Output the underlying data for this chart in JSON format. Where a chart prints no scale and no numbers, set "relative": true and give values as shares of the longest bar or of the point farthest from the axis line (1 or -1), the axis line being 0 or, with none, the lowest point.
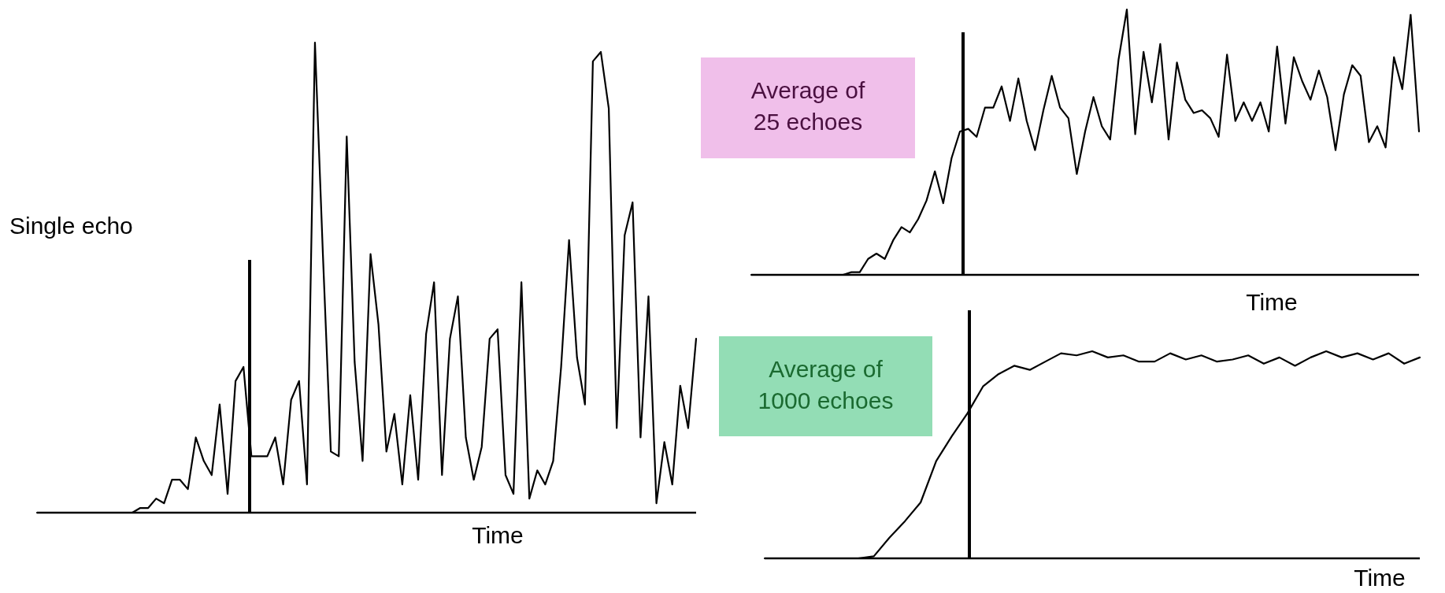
{
  "chart_data": [
    {
      "type": "line",
      "relative": true,
      "title": "Single echo",
      "xlabel": "Time",
      "categories": [
        null,
        null,
        null,
        null,
        null,
        null,
        null,
        null,
        null,
        null,
        null,
        null,
        null,
        null,
        null,
        null,
        null,
        null,
        null,
        null,
        null,
        null,
        null,
        null,
        null,
        null,
        null,
        null,
        null,
        null,
        null,
        null,
        null,
        null,
        null,
        null,
        null,
        null,
        null,
        null,
        null,
        null,
        null,
        null,
        null,
        null,
        null,
        null,
        null,
        null,
        null,
        null,
        null,
        null,
        null,
        null,
        null,
        null,
        null,
        null,
        null,
        null,
        null,
        null,
        null,
        null,
        null,
        null,
        null,
        null,
        null,
        null,
        null,
        null,
        null,
        null,
        null,
        null,
        null,
        null,
        null,
        null,
        null,
        null
      ],
      "series": [
        {
          "color": "#000000",
          "values": [
            0,
            0,
            0,
            0,
            0,
            0,
            0,
            0,
            0,
            0,
            0,
            0,
            0,
            0.01,
            0.01,
            0.03,
            0.02,
            0.07,
            0.07,
            0.05,
            0.16,
            0.11,
            0.08,
            0.23,
            0.04,
            0.28,
            0.31,
            0.12,
            0.12,
            0.12,
            0.16,
            0.06,
            0.24,
            0.28,
            0.06,
            1,
            0.55,
            0.13,
            0.12,
            0.8,
            0.32,
            0.11,
            0.55,
            0.4,
            0.13,
            0.21,
            0.06,
            0.25,
            0.07,
            0.38,
            0.49,
            0.08,
            0.37,
            0.46,
            0.16,
            0.07,
            0.14,
            0.37,
            0.39,
            0.08,
            0.04,
            0.49,
            0.03,
            0.09,
            0.06,
            0.11,
            0.31,
            0.58,
            0.33,
            0.23,
            0.96,
            0.98,
            0.86,
            0.18,
            0.59,
            0.66,
            0.16,
            0.46,
            0.02,
            0.15,
            0.06,
            0.27,
            0.18,
            0.37
          ]
        }
      ]
    },
    {
      "type": "line",
      "relative": true,
      "title": "Average of 25 echoes",
      "xlabel": "Time",
      "categories": [
        null,
        null,
        null,
        null,
        null,
        null,
        null,
        null,
        null,
        null,
        null,
        null,
        null,
        null,
        null,
        null,
        null,
        null,
        null,
        null,
        null,
        null,
        null,
        null,
        null,
        null,
        null,
        null,
        null,
        null,
        null,
        null,
        null,
        null,
        null,
        null,
        null,
        null,
        null,
        null,
        null,
        null,
        null,
        null,
        null,
        null,
        null,
        null,
        null,
        null,
        null,
        null,
        null,
        null,
        null,
        null,
        null,
        null,
        null,
        null,
        null,
        null,
        null,
        null,
        null,
        null,
        null,
        null,
        null,
        null,
        null,
        null,
        null,
        null,
        null,
        null,
        null,
        null,
        null,
        null,
        null
      ],
      "series": [
        {
          "color": "#000000",
          "values": [
            0,
            0,
            0,
            0,
            0,
            0,
            0,
            0,
            0,
            0,
            0,
            0,
            0.01,
            0.01,
            0.06,
            0.08,
            0.06,
            0.13,
            0.18,
            0.16,
            0.21,
            0.28,
            0.39,
            0.27,
            0.44,
            0.54,
            0.55,
            0.52,
            0.63,
            0.63,
            0.71,
            0.58,
            0.74,
            0.58,
            0.47,
            0.62,
            0.75,
            0.63,
            0.59,
            0.38,
            0.54,
            0.67,
            0.56,
            0.51,
            0.81,
            1,
            0.53,
            0.84,
            0.65,
            0.87,
            0.51,
            0.8,
            0.66,
            0.61,
            0.62,
            0.59,
            0.52,
            0.83,
            0.58,
            0.65,
            0.58,
            0.65,
            0.54,
            0.86,
            0.57,
            0.82,
            0.73,
            0.66,
            0.77,
            0.67,
            0.47,
            0.68,
            0.79,
            0.75,
            0.5,
            0.56,
            0.48,
            0.82,
            0.7,
            0.98,
            0.54
          ]
        }
      ]
    },
    {
      "type": "line",
      "relative": true,
      "title": "Average of 1000 echoes",
      "xlabel": "Time",
      "categories": [
        null,
        null,
        null,
        null,
        null,
        null,
        null,
        null,
        null,
        null,
        null,
        null,
        null,
        null,
        null,
        null,
        null,
        null,
        null,
        null,
        null,
        null,
        null,
        null,
        null,
        null,
        null,
        null,
        null,
        null,
        null,
        null,
        null,
        null,
        null,
        null,
        null,
        null,
        null,
        null,
        null,
        null,
        null
      ],
      "series": [
        {
          "color": "#000000",
          "values": [
            0,
            0,
            0,
            0,
            0,
            0,
            0,
            0.01,
            0.1,
            0.18,
            0.27,
            0.47,
            0.59,
            0.7,
            0.83,
            0.89,
            0.93,
            0.91,
            0.95,
            0.99,
            0.98,
            1,
            0.97,
            0.98,
            0.95,
            0.95,
            0.99,
            0.96,
            0.98,
            0.95,
            0.96,
            0.98,
            0.94,
            0.97,
            0.93,
            0.97,
            1,
            0.97,
            0.99,
            0.96,
            0.99,
            0.94,
            0.97
          ]
        }
      ]
    }
  ]
}
